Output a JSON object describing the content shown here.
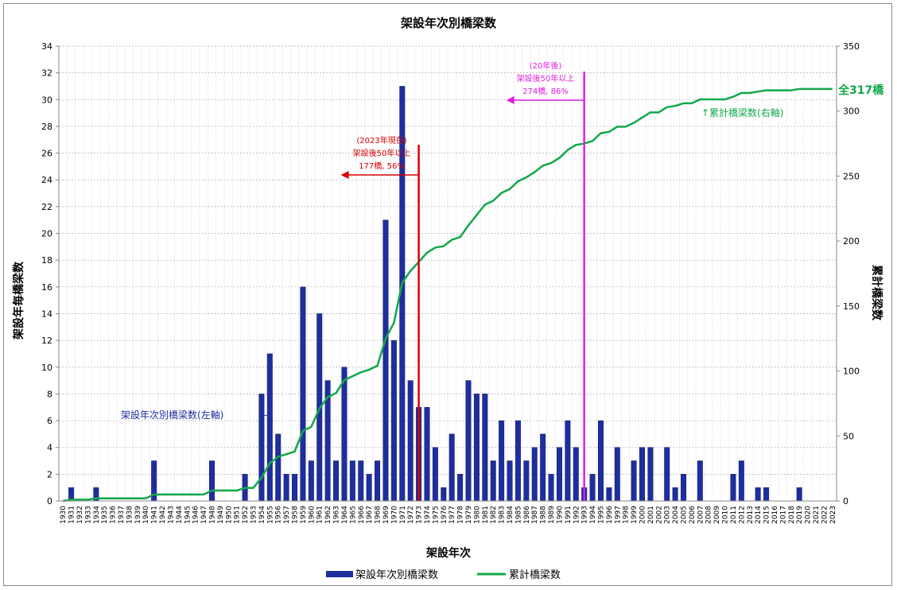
{
  "chart_data": {
    "type": "bar",
    "title": "架設年次別橋梁数",
    "xlabel": "架設年次",
    "ylabel": "架設年毎橋梁数",
    "y2label": "累計橋梁数",
    "ylim": [
      0,
      34
    ],
    "y2lim": [
      0,
      350
    ],
    "yticks": [
      "0",
      "2",
      "4",
      "6",
      "8",
      "10",
      "12",
      "14",
      "16",
      "18",
      "20",
      "22",
      "24",
      "26",
      "28",
      "30",
      "32",
      "34"
    ],
    "y2ticks": [
      "0",
      "50",
      "100",
      "150",
      "200",
      "250",
      "300",
      "350"
    ],
    "grid": true,
    "legend_position": "bottom",
    "categories": [
      "1930",
      "1931",
      "1932",
      "1933",
      "1934",
      "1935",
      "1936",
      "1937",
      "1938",
      "1939",
      "1940",
      "1941",
      "1942",
      "1943",
      "1944",
      "1945",
      "1946",
      "1947",
      "1948",
      "1949",
      "1950",
      "1951",
      "1952",
      "1953",
      "1954",
      "1955",
      "1956",
      "1957",
      "1958",
      "1959",
      "1960",
      "1961",
      "1962",
      "1963",
      "1964",
      "1965",
      "1966",
      "1967",
      "1968",
      "1969",
      "1970",
      "1971",
      "1972",
      "1973",
      "1974",
      "1975",
      "1976",
      "1977",
      "1978",
      "1979",
      "1980",
      "1981",
      "1982",
      "1983",
      "1984",
      "1985",
      "1986",
      "1987",
      "1988",
      "1989",
      "1990",
      "1991",
      "1992",
      "1993",
      "1994",
      "1995",
      "1996",
      "1997",
      "1998",
      "1999",
      "2000",
      "2001",
      "2002",
      "2003",
      "2004",
      "2005",
      "2006",
      "2007",
      "2008",
      "2009",
      "2010",
      "2011",
      "2012",
      "2013",
      "2014",
      "2015",
      "2016",
      "2017",
      "2018",
      "2019",
      "2020",
      "2021",
      "2022",
      "2023"
    ],
    "series": [
      {
        "name": "架設年次別橋梁数",
        "type": "bar",
        "axis": "left",
        "color": "#1f2e9e",
        "values": [
          0,
          1,
          0,
          0,
          1,
          0,
          0,
          0,
          0,
          0,
          0,
          3,
          0,
          0,
          0,
          0,
          0,
          0,
          3,
          0,
          0,
          0,
          2,
          0,
          8,
          11,
          5,
          2,
          2,
          16,
          3,
          14,
          9,
          3,
          10,
          3,
          3,
          2,
          3,
          21,
          12,
          31,
          9,
          7,
          7,
          4,
          1,
          5,
          2,
          9,
          8,
          8,
          3,
          6,
          3,
          6,
          3,
          4,
          5,
          2,
          4,
          6,
          4,
          1,
          2,
          6,
          1,
          4,
          0,
          3,
          4,
          4,
          0,
          4,
          1,
          2,
          0,
          3,
          0,
          0,
          0,
          2,
          3,
          0,
          1,
          1,
          0,
          0,
          0,
          1,
          0,
          0,
          0,
          0
        ]
      },
      {
        "name": "累計橋梁数",
        "type": "line",
        "axis": "right",
        "color": "#12a84a",
        "values": [
          0,
          1,
          1,
          1,
          2,
          2,
          2,
          2,
          2,
          2,
          2,
          5,
          5,
          5,
          5,
          5,
          5,
          5,
          8,
          8,
          8,
          8,
          10,
          10,
          18,
          29,
          34,
          36,
          38,
          54,
          57,
          71,
          80,
          83,
          93,
          96,
          99,
          101,
          104,
          125,
          137,
          168,
          177,
          184,
          191,
          195,
          196,
          201,
          203,
          212,
          220,
          228,
          231,
          237,
          240,
          246,
          249,
          253,
          258,
          260,
          264,
          270,
          274,
          275,
          277,
          283,
          284,
          288,
          288,
          291,
          295,
          299,
          299,
          303,
          304,
          306,
          306,
          309,
          309,
          309,
          309,
          311,
          314,
          314,
          315,
          316,
          316,
          316,
          316,
          317,
          317,
          317,
          317,
          317
        ]
      }
    ],
    "annotations": {
      "cutoff_2023": {
        "line1": "(2023年現在)",
        "line2": "架設後50年以上",
        "line3": "177橋, 56%",
        "year": "1973"
      },
      "cutoff_future": {
        "line1": "(20年後)",
        "line2": "架設後50年以上",
        "line3": "274橋, 86%",
        "year": "1993"
      },
      "total": "全317橋",
      "line_label": "↑累計橋梁数(右軸)",
      "bar_label": "架設年次別橋梁数(左軸)"
    },
    "colors": {
      "bar": "#1f2e9e",
      "line": "#12a84a",
      "cutoff_2023": "#d90000",
      "cutoff_future": "#e020e0"
    }
  }
}
